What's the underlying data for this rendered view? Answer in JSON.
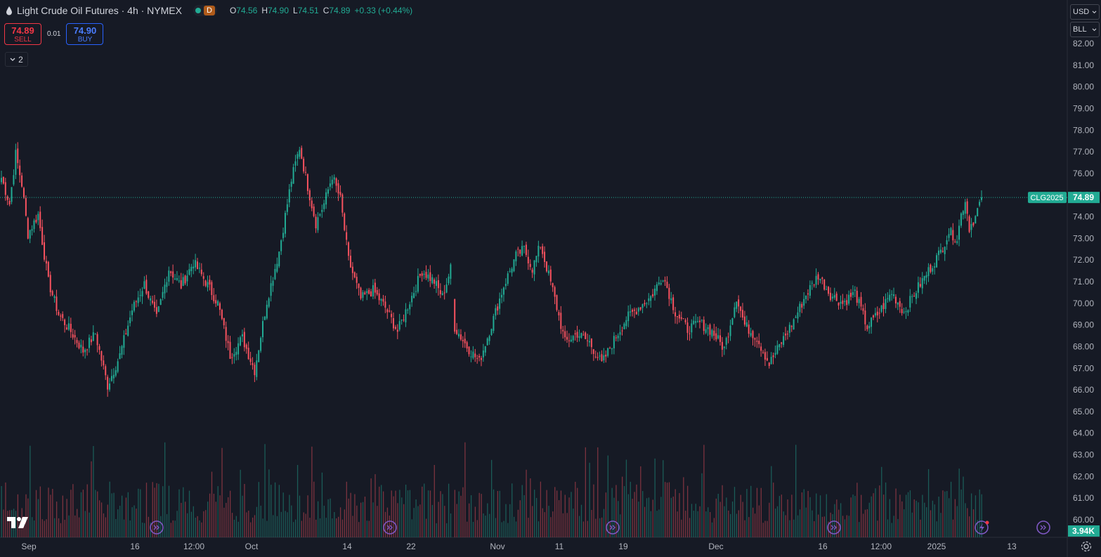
{
  "header": {
    "title": "Light Crude Oil Futures · 4h · NYMEX",
    "interval_badge": "D",
    "ohlc": [
      {
        "k": "O",
        "v": "74.56"
      },
      {
        "k": "H",
        "v": "74.90"
      },
      {
        "k": "L",
        "v": "74.51"
      },
      {
        "k": "C",
        "v": "74.89"
      },
      {
        "k": "",
        "v": "+0.33 (+0.44%)"
      }
    ]
  },
  "trade": {
    "sell_price": "74.89",
    "sell_label": "SELL",
    "spread": "0.01",
    "buy_price": "74.90",
    "buy_label": "BUY"
  },
  "indicators_toggle": "2",
  "toolbar": {
    "currency": "USD",
    "unit": "BLL"
  },
  "price_label": {
    "symbol": "CLG2025",
    "value": "74.89"
  },
  "volume_label": "3.94K",
  "colors": {
    "up": "#22ab94",
    "down": "#f7525f",
    "bg": "#161a25",
    "grid": "#2a2e39",
    "axis_text": "#b2b5be",
    "last_price": "#22ab94",
    "event": "#7e57c2"
  },
  "icons": [
    "drop-icon",
    "chevron-down-icon",
    "event-arrow-icon",
    "lightning-icon",
    "gear-icon",
    "tradingview-logo"
  ],
  "chart_data": {
    "type": "candlestick",
    "timeframe": "4h",
    "y_ticks": [
      "82.00",
      "81.00",
      "80.00",
      "79.00",
      "78.00",
      "77.00",
      "76.00",
      "75.00",
      "74.00",
      "73.00",
      "72.00",
      "71.00",
      "70.00",
      "69.00",
      "68.00",
      "67.00",
      "66.00",
      "65.00",
      "64.00",
      "63.00",
      "62.00",
      "61.00",
      "60.00"
    ],
    "ylim": [
      59.7,
      82.3
    ],
    "x_ticks": [
      "Sep",
      "16",
      "12:00",
      "Oct",
      "14",
      "22",
      "Nov",
      "11",
      "19",
      "Dec",
      "16",
      "12:00",
      "2025",
      "13"
    ],
    "last_price": 74.89,
    "last_volume": "3.94K",
    "series_anchors": [
      {
        "i": 0,
        "c": 75.8
      },
      {
        "i": 4,
        "c": 74.6
      },
      {
        "i": 7,
        "c": 76.9
      },
      {
        "i": 10,
        "c": 75.5
      },
      {
        "i": 13,
        "c": 73.2
      },
      {
        "i": 18,
        "c": 74.1
      },
      {
        "i": 23,
        "c": 71.0
      },
      {
        "i": 28,
        "c": 69.5
      },
      {
        "i": 34,
        "c": 68.7
      },
      {
        "i": 40,
        "c": 67.8
      },
      {
        "i": 46,
        "c": 68.6
      },
      {
        "i": 52,
        "c": 66.2
      },
      {
        "i": 58,
        "c": 67.6
      },
      {
        "i": 64,
        "c": 69.7
      },
      {
        "i": 70,
        "c": 70.9
      },
      {
        "i": 76,
        "c": 69.3
      },
      {
        "i": 82,
        "c": 71.6
      },
      {
        "i": 88,
        "c": 70.8
      },
      {
        "i": 94,
        "c": 71.9
      },
      {
        "i": 100,
        "c": 71.0
      },
      {
        "i": 106,
        "c": 70.0
      },
      {
        "i": 112,
        "c": 67.6
      },
      {
        "i": 118,
        "c": 68.4
      },
      {
        "i": 124,
        "c": 66.9
      },
      {
        "i": 130,
        "c": 70.1
      },
      {
        "i": 136,
        "c": 72.4
      },
      {
        "i": 142,
        "c": 75.7
      },
      {
        "i": 146,
        "c": 77.2
      },
      {
        "i": 150,
        "c": 75.4
      },
      {
        "i": 154,
        "c": 73.7
      },
      {
        "i": 158,
        "c": 74.6
      },
      {
        "i": 162,
        "c": 75.9
      },
      {
        "i": 166,
        "c": 74.8
      },
      {
        "i": 170,
        "c": 72.0
      },
      {
        "i": 176,
        "c": 70.2
      },
      {
        "i": 182,
        "c": 70.6
      },
      {
        "i": 188,
        "c": 69.8
      },
      {
        "i": 194,
        "c": 68.7
      },
      {
        "i": 200,
        "c": 70.1
      },
      {
        "i": 206,
        "c": 71.5
      },
      {
        "i": 212,
        "c": 71.0
      },
      {
        "i": 216,
        "c": 70.3
      },
      {
        "i": 220,
        "c": 71.6
      },
      {
        "i": 222,
        "c": 68.9
      },
      {
        "i": 228,
        "c": 68.0
      },
      {
        "i": 234,
        "c": 67.3
      },
      {
        "i": 240,
        "c": 69.0
      },
      {
        "i": 246,
        "c": 70.8
      },
      {
        "i": 252,
        "c": 72.2
      },
      {
        "i": 256,
        "c": 72.5
      },
      {
        "i": 260,
        "c": 71.6
      },
      {
        "i": 264,
        "c": 72.7
      },
      {
        "i": 270,
        "c": 70.6
      },
      {
        "i": 276,
        "c": 68.2
      },
      {
        "i": 282,
        "c": 68.6
      },
      {
        "i": 288,
        "c": 68.2
      },
      {
        "i": 294,
        "c": 67.2
      },
      {
        "i": 300,
        "c": 68.3
      },
      {
        "i": 306,
        "c": 69.3
      },
      {
        "i": 312,
        "c": 69.8
      },
      {
        "i": 318,
        "c": 70.3
      },
      {
        "i": 324,
        "c": 71.3
      },
      {
        "i": 330,
        "c": 69.6
      },
      {
        "i": 336,
        "c": 68.8
      },
      {
        "i": 342,
        "c": 69.1
      },
      {
        "i": 348,
        "c": 68.7
      },
      {
        "i": 354,
        "c": 67.9
      },
      {
        "i": 360,
        "c": 70.3
      },
      {
        "i": 364,
        "c": 69.0
      },
      {
        "i": 370,
        "c": 68.4
      },
      {
        "i": 376,
        "c": 67.2
      },
      {
        "i": 382,
        "c": 68.2
      },
      {
        "i": 388,
        "c": 69.2
      },
      {
        "i": 394,
        "c": 70.4
      },
      {
        "i": 400,
        "c": 71.3
      },
      {
        "i": 406,
        "c": 70.4
      },
      {
        "i": 412,
        "c": 70.0
      },
      {
        "i": 418,
        "c": 70.5
      },
      {
        "i": 424,
        "c": 68.9
      },
      {
        "i": 430,
        "c": 69.6
      },
      {
        "i": 436,
        "c": 70.5
      },
      {
        "i": 442,
        "c": 69.6
      },
      {
        "i": 448,
        "c": 70.6
      },
      {
        "i": 454,
        "c": 71.5
      },
      {
        "i": 460,
        "c": 72.4
      },
      {
        "i": 464,
        "c": 73.3
      },
      {
        "i": 468,
        "c": 73.0
      },
      {
        "i": 470,
        "c": 74.1
      },
      {
        "i": 472,
        "c": 74.8
      },
      {
        "i": 474,
        "c": 73.5
      },
      {
        "i": 477,
        "c": 74.0
      },
      {
        "i": 480,
        "c": 74.89
      }
    ]
  }
}
